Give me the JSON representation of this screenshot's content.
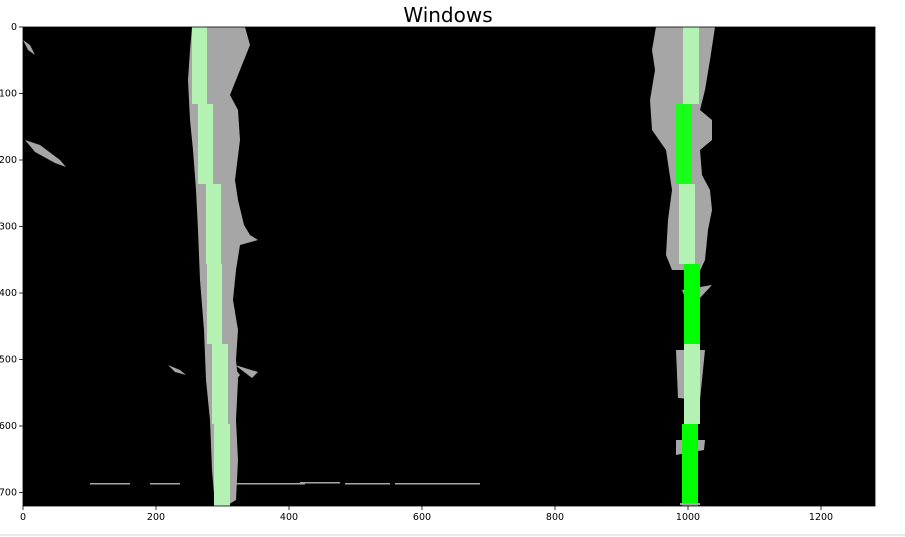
{
  "title": "Windows",
  "x_ticks": [
    "0",
    "200",
    "400",
    "600",
    "800",
    "1000",
    "1200"
  ],
  "y_ticks": [
    "0",
    "100",
    "200",
    "300",
    "400",
    "500",
    "600",
    "700"
  ],
  "image": {
    "description_colors": {
      "background": "#000000",
      "lane_gray": "#a6a6a6",
      "window_light_green": "#b3f2b3",
      "window_bright_green": "#00ff00"
    }
  }
}
